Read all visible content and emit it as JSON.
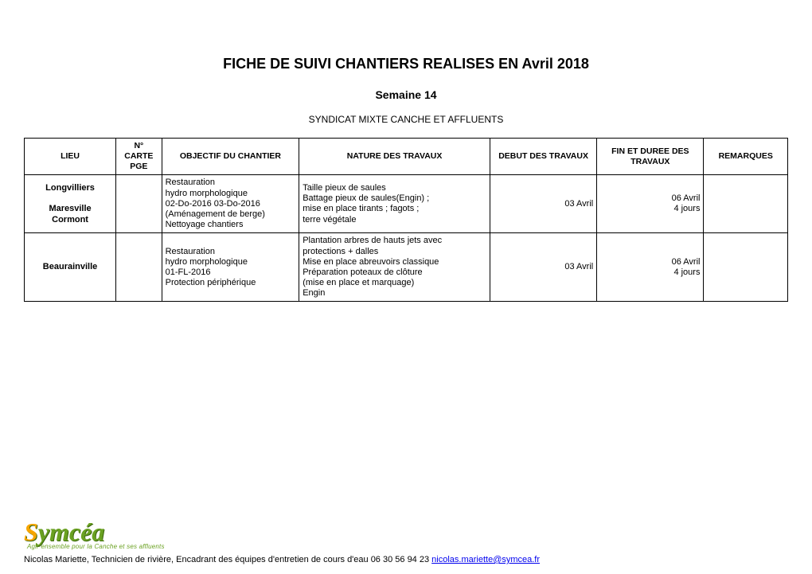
{
  "title": "FICHE DE SUIVI CHANTIERS REALISES EN Avril 2018",
  "subtitle": "Semaine 14",
  "org": "SYNDICAT MIXTE CANCHE ET AFFLUENTS",
  "columns": {
    "lieu": "LIEU",
    "carte": "N° CARTE PGE",
    "objectif": "OBJECTIF DU CHANTIER",
    "nature": "NATURE DES TRAVAUX",
    "debut": "DEBUT DES TRAVAUX",
    "fin": "FIN ET DUREE DES TRAVAUX",
    "remarques": "REMARQUES"
  },
  "rows": [
    {
      "lieu": "Longvilliers\n\nMaresville\nCormont",
      "carte": "",
      "objectif": "Restauration\nhydro morphologique\n02-Do-2016  03-Do-2016\n(Aménagement de berge)\nNettoyage chantiers",
      "nature": "Taille pieux de saules\nBattage pieux de saules(Engin) ;\nmise en place tirants ; fagots ;\nterre végétale",
      "debut": "03 Avril",
      "fin": "06 Avril\n4 jours",
      "remarques": ""
    },
    {
      "lieu": "Beaurainville",
      "carte": "",
      "objectif": "Restauration\nhydro morphologique\n01-FL-2016\nProtection périphérique",
      "nature": "Plantation arbres de hauts jets avec protections + dalles\nMise en place abreuvoirs classique\nPréparation poteaux de clôture\n(mise en place et marquage)\nEngin",
      "debut": "03 Avril",
      "fin": "06 Avril\n4 jours",
      "remarques": ""
    }
  ],
  "logo": {
    "brand_pre": "S",
    "brand_rest": "ymcéa",
    "tagline": "Agir ensemble pour la Canche et ses affluents"
  },
  "footer": {
    "text": "Nicolas Mariette, Technicien de rivière, Encadrant des équipes d'entretien de cours d'eau 06 30 56 94 23 ",
    "email": "nicolas.mariette@symcea.fr"
  }
}
